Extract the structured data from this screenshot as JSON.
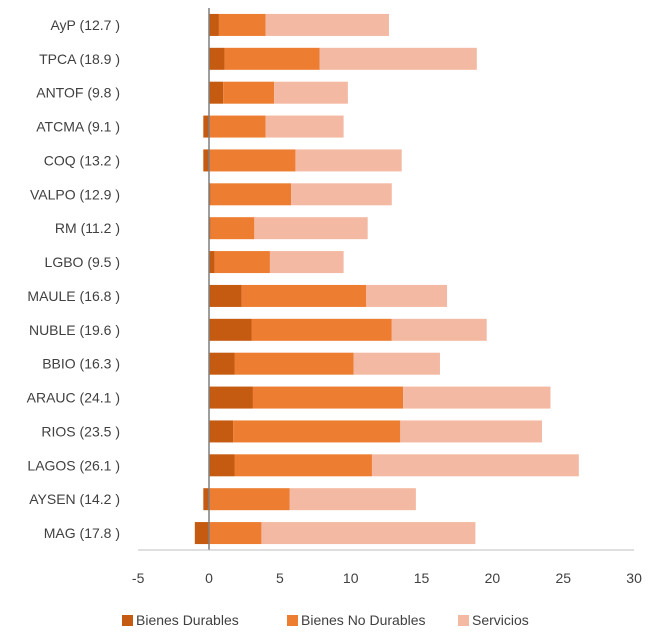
{
  "chart_data": {
    "type": "bar",
    "orientation": "horizontal",
    "stacked": true,
    "title": "",
    "xlabel": "",
    "ylabel": "",
    "xlim": [
      -5,
      30
    ],
    "xticks": [
      -5,
      0,
      5,
      10,
      15,
      20,
      25,
      30
    ],
    "grid": false,
    "legend_position": "bottom",
    "categories": [
      "AyP (12.7 )",
      "TPCA (18.9 )",
      "ANTOF (9.8 )",
      "ATCMA (9.1 )",
      "COQ (13.2 )",
      "VALPO (12.9 )",
      "RM (11.2 )",
      "LGBO (9.5 )",
      "MAULE (16.8 )",
      "NUBLE (19.6 )",
      "BBIO (16.3 )",
      "ARAUC (24.1 )",
      "RIOS (23.5 )",
      "LAGOS (26.1 )",
      "AYSEN (14.2 )",
      "MAG (17.8 )"
    ],
    "series": [
      {
        "name": "Bienes Durables",
        "color": "#C55A11",
        "values": [
          0.7,
          1.1,
          1.0,
          -0.4,
          -0.4,
          0.1,
          0.1,
          0.4,
          2.3,
          3.0,
          1.8,
          3.1,
          1.7,
          1.8,
          -0.4,
          -1.0
        ]
      },
      {
        "name": "Bienes No Durables",
        "color": "#ED7D31",
        "values": [
          3.3,
          6.7,
          3.6,
          4.0,
          6.1,
          5.7,
          3.1,
          3.9,
          8.8,
          9.9,
          8.4,
          10.6,
          11.8,
          9.7,
          5.7,
          3.7
        ]
      },
      {
        "name": "Servicios",
        "color": "#F4B9A2",
        "values": [
          8.7,
          11.1,
          5.2,
          5.5,
          7.5,
          7.1,
          8.0,
          5.2,
          5.7,
          6.7,
          6.1,
          10.4,
          10.0,
          14.6,
          8.9,
          15.1
        ]
      }
    ]
  }
}
